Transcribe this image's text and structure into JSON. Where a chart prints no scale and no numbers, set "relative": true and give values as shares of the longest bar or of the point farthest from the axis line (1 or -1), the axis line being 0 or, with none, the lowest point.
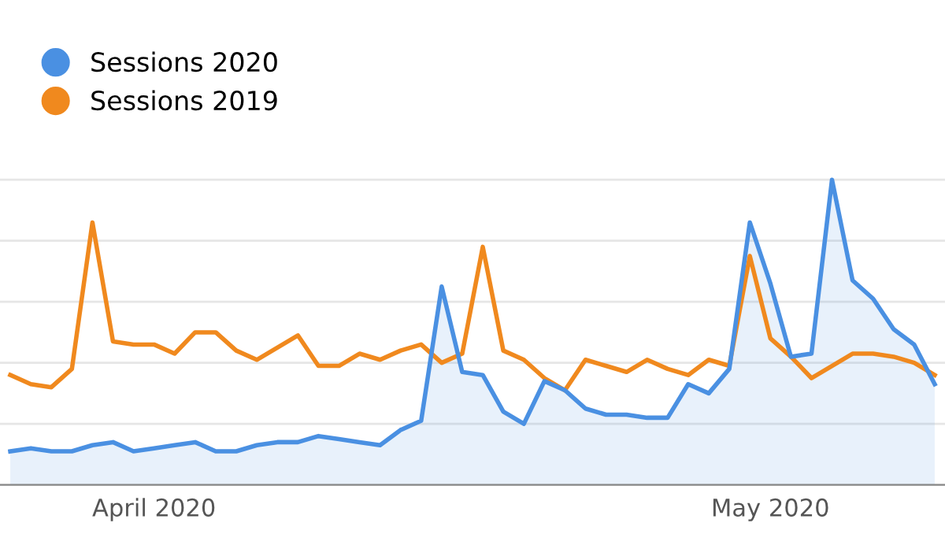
{
  "chart_data": {
    "type": "line",
    "relative": true,
    "grid": "y",
    "legend": "top left",
    "marker": "none",
    "x": [
      "2020-03-25",
      "2020-03-26",
      "2020-03-27",
      "2020-03-28",
      "2020-03-29",
      "2020-03-30",
      "2020-03-31",
      "2020-04-01",
      "2020-04-02",
      "2020-04-03",
      "2020-04-04",
      "2020-04-05",
      "2020-04-06",
      "2020-04-07",
      "2020-04-08",
      "2020-04-09",
      "2020-04-10",
      "2020-04-11",
      "2020-04-12",
      "2020-04-13",
      "2020-04-14",
      "2020-04-15",
      "2020-04-16",
      "2020-04-17",
      "2020-04-18",
      "2020-04-19",
      "2020-04-20",
      "2020-04-21",
      "2020-04-22",
      "2020-04-23",
      "2020-04-24",
      "2020-04-25",
      "2020-04-26",
      "2020-04-27",
      "2020-04-28",
      "2020-04-29",
      "2020-04-30",
      "2020-05-01",
      "2020-05-02",
      "2020-05-03",
      "2020-05-04",
      "2020-05-05",
      "2020-05-06",
      "2020-05-07",
      "2020-05-08",
      "2020-05-09"
    ],
    "xlim": [
      "2020-03-24T12:00",
      "2020-05-09T12:00"
    ],
    "xticks": [
      {
        "value": "2020-04-01",
        "label": "April 2020"
      },
      {
        "value": "2020-05-01",
        "label": "May 2020"
      }
    ],
    "series": [
      {
        "name": "Sessions 2020",
        "type": "area",
        "color": "#4a90e2",
        "values": [
          0.11,
          0.12,
          0.11,
          0.11,
          0.13,
          0.14,
          0.11,
          0.12,
          0.13,
          0.14,
          0.11,
          0.11,
          0.13,
          0.14,
          0.14,
          0.16,
          0.15,
          0.14,
          0.13,
          0.18,
          0.21,
          0.65,
          0.37,
          0.36,
          0.24,
          0.2,
          0.34,
          0.31,
          0.25,
          0.23,
          0.23,
          0.22,
          0.22,
          0.33,
          0.3,
          0.38,
          0.86,
          0.66,
          0.42,
          0.43,
          1,
          0.67,
          0.61,
          0.51,
          0.46,
          0.33
        ]
      },
      {
        "name": "Sessions 2019",
        "color": "#f0891e",
        "values": [
          0.36,
          0.33,
          0.32,
          0.38,
          0.86,
          0.47,
          0.46,
          0.46,
          0.43,
          0.5,
          0.5,
          0.44,
          0.41,
          0.45,
          0.49,
          0.39,
          0.39,
          0.43,
          0.41,
          0.44,
          0.46,
          0.4,
          0.43,
          0.78,
          0.44,
          0.41,
          0.35,
          0.31,
          0.41,
          0.39,
          0.37,
          0.41,
          0.38,
          0.36,
          0.41,
          0.39,
          0.75,
          0.48,
          0.42,
          0.35,
          0.39,
          0.43,
          0.43,
          0.42,
          0.4,
          0.36
        ]
      }
    ]
  }
}
